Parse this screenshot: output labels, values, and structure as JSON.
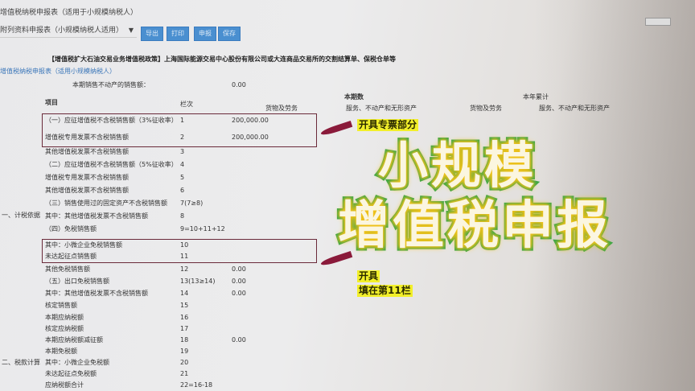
{
  "window": {
    "title": "增值税纳税申报表（适用于小规模纳税人）"
  },
  "toolbar": {
    "form_select": "附列资料申报表（小规模纳税人适用）",
    "buttons": [
      {
        "label": "导出"
      },
      {
        "label": "打印"
      },
      {
        "label": "申报"
      },
      {
        "label": "保存"
      }
    ]
  },
  "notice": "【增值税扩大石油交易业务增值税政策】上海国际能源交易中心股份有限公司或大连商品交易所的交割结算单、保税仓单等",
  "form": {
    "subtitle": "增值税纳税申报表（适用小规模纳税人）",
    "realestate_label": "本期销售不动产的销售额：",
    "realestate_value": "0.00",
    "headers": {
      "item": "项目",
      "line": "栏次",
      "current_period": "本期数",
      "ytd": "本年累计",
      "goods": "货物及劳务",
      "services": "服务、不动产和无形资产",
      "goods_ytd": "货物及劳务",
      "services_ytd": "服务、不动产和无形资产"
    },
    "sections": {
      "tax_basis": "一、计税依据",
      "tax_calc": "二、税款计算"
    },
    "rows": [
      {
        "label": "（一）应征增值税不含税销售额（3%征收率）",
        "no": "1",
        "value": "200,000.00"
      },
      {
        "label": "增值税专用发票不含税销售额",
        "no": "2",
        "value": "200,000.00"
      },
      {
        "label": "其他增值税发票不含税销售额",
        "no": "3",
        "value": ""
      },
      {
        "label": "（二）应征增值税不含税销售额（5%征收率）",
        "no": "4",
        "value": ""
      },
      {
        "label": "增值税专用发票不含税销售额",
        "no": "5",
        "value": ""
      },
      {
        "label": "其他增值税发票不含税销售额",
        "no": "6",
        "value": ""
      },
      {
        "label": "（三）销售使用过的固定资产不含税销售额",
        "no": "7(7≥8)",
        "value": ""
      },
      {
        "label": "其中：其他增值税发票不含税销售额",
        "no": "8",
        "value": ""
      },
      {
        "label": "（四）免税销售额",
        "no": "9=10+11+12",
        "value": ""
      },
      {
        "label": "其中：小微企业免税销售额",
        "no": "10",
        "value": ""
      },
      {
        "label": "未达起征点销售额",
        "no": "11",
        "value": ""
      },
      {
        "label": "其他免税销售额",
        "no": "12",
        "value": "0.00"
      },
      {
        "label": "（五）出口免税销售额",
        "no": "13(13≥14)",
        "value": "0.00"
      },
      {
        "label": "其中：其他增值税发票不含税销售额",
        "no": "14",
        "value": "0.00"
      },
      {
        "label": "核定销售额",
        "no": "15",
        "value": ""
      },
      {
        "label": "本期应纳税额",
        "no": "16",
        "value": ""
      },
      {
        "label": "核定应纳税额",
        "no": "17",
        "value": ""
      },
      {
        "label": "本期应纳税额减征额",
        "no": "18",
        "value": "0.00"
      },
      {
        "label": "本期免税额",
        "no": "19",
        "value": ""
      },
      {
        "label": "其中：小微企业免税额",
        "no": "20",
        "value": ""
      },
      {
        "label": "未达起征点免税额",
        "no": "21",
        "value": ""
      },
      {
        "label": "应纳税额合计",
        "no": "22=16-18",
        "value": ""
      }
    ]
  },
  "overlay": {
    "line1": "小规模",
    "line2": "增值税申报",
    "note1": "开具专票部分",
    "note2a": "开具",
    "note2b": "填在第11栏",
    "colors": {
      "fill": "#fbf6e0",
      "stroke": "#3aa64a",
      "glow": "#f3c21a",
      "note_bg": "#f2ef2a",
      "arrow": "#8a1a3a",
      "button": "#4a8fd0"
    }
  }
}
